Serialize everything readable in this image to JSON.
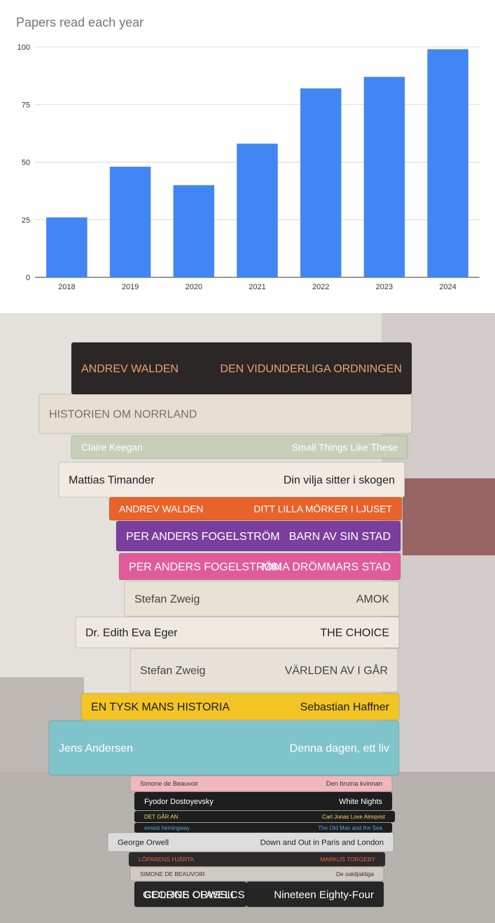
{
  "chart_data": {
    "type": "bar",
    "title": "Papers read each year",
    "categories": [
      "2018",
      "2019",
      "2020",
      "2021",
      "2022",
      "2023",
      "2024"
    ],
    "values": [
      26,
      48,
      40,
      58,
      82,
      87,
      99
    ],
    "ylim": [
      0,
      100
    ],
    "yticks": [
      "0",
      "25",
      "50",
      "75",
      "100"
    ],
    "grid": true,
    "bar_color": "#4285f4"
  },
  "photo": {
    "books": [
      {
        "left": "ANDREV WALDEN",
        "right": "DEN VIDUNDERLIGA ORDNINGEN",
        "bg": "#2b2727",
        "fg": "#f0a070"
      },
      {
        "left": "HISTORIEN OM NORRLAND",
        "right": "",
        "bg": "#e7e0d2",
        "fg": "#7a6f63"
      },
      {
        "left": "Claire Keegan",
        "right": "Small Things Like These",
        "bg": "#c8cfb8",
        "fg": "#ffffff"
      },
      {
        "left": "Mattias Timander",
        "right": "Din vilja sitter i skogen",
        "bg": "#efeae2",
        "fg": "#222222"
      },
      {
        "left": "ANDREV WALDEN",
        "right": "DITT LILLA MÖRKER I LJUSET",
        "bg": "#e8632a",
        "fg": "#ffffff"
      },
      {
        "left": "PER ANDERS FOGELSTRÖM",
        "right": "BARN AV SIN STAD",
        "bg": "#7a3f9e",
        "fg": "#ffffff"
      },
      {
        "left": "PER ANDERS FOGELSTRÖM",
        "right": "MINA DRÖMMARS STAD",
        "bg": "#e05b9a",
        "fg": "#ffffff"
      },
      {
        "left": "Stefan Zweig",
        "right": "AMOK",
        "bg": "#e8e2d4",
        "fg": "#444444"
      },
      {
        "left": "Dr. Edith Eva Eger",
        "right": "THE CHOICE",
        "bg": "#eeeae2",
        "fg": "#222222"
      },
      {
        "left": "Stefan Zweig",
        "right": "VÄRLDEN AV I GÅR",
        "bg": "#e6e2da",
        "fg": "#444444"
      },
      {
        "left": "EN TYSK MANS HISTORIA",
        "right": "Sebastian Haffner",
        "bg": "#f2c525",
        "fg": "#1a1a1a"
      },
      {
        "left": "Jens Andersen",
        "right": "Denna dagen, ett liv",
        "bg": "#7fc4cb",
        "fg": "#ffffff"
      },
      {
        "left": "Simone de Beauvoir",
        "right": "Den brutna kvinnan",
        "bg": "#f0b8bd",
        "fg": "#333333"
      },
      {
        "left": "Fyodor Dostoyevsky",
        "right": "White Nights",
        "bg": "#1e1e1e",
        "fg": "#ffffff"
      },
      {
        "left": "DET GÅR AN",
        "right": "Carl Jonas Love Almqvist",
        "bg": "#1e1e1e",
        "fg": "#f2d46b"
      },
      {
        "left": "ernest hemingway",
        "right": "The Old Man and the Sea",
        "bg": "#1e1e1e",
        "fg": "#4aa6e0"
      },
      {
        "left": "George Orwell",
        "right": "Down and Out in Paris and London",
        "bg": "#dcdcdc",
        "fg": "#222222"
      },
      {
        "left": "LÖPARENS HJÄRTA",
        "right": "MARKUS TORGEBY",
        "bg": "#2c2a2a",
        "fg": "#e2674a"
      },
      {
        "left": "SIMONE DE BEAUVOIR",
        "right": "De oskiljaktiga",
        "bg": "#cfcac4",
        "fg": "#333333"
      },
      {
        "left": "COLLINS CLASSICS",
        "right": "GEORGE ORWELL",
        "bg": "#262626",
        "fg": "#ffffff"
      },
      {
        "left": "",
        "right": "Nineteen Eighty-Four",
        "bg": "#262626",
        "fg": "#ffffff"
      }
    ]
  }
}
